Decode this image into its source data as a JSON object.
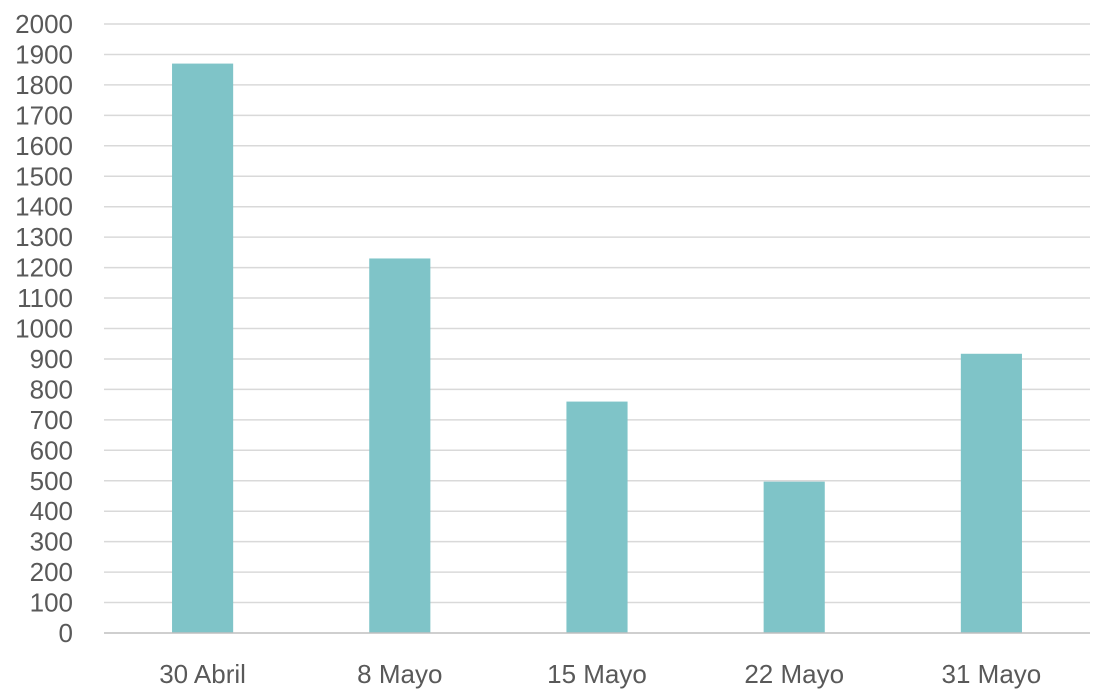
{
  "chart_data": {
    "type": "bar",
    "title": "",
    "xlabel": "",
    "ylabel": "",
    "categories": [
      "30 Abril",
      "8 Mayo",
      "15 Mayo",
      "22 Mayo",
      "31 Mayo"
    ],
    "values": [
      1870,
      1230,
      760,
      497,
      917
    ],
    "ylim": [
      0,
      2000
    ],
    "y_ticks": [
      "0",
      "100",
      "200",
      "300",
      "400",
      "500",
      "600",
      "700",
      "800",
      "900",
      "1000",
      "1100",
      "1200",
      "1300",
      "1400",
      "1500",
      "1600",
      "1700",
      "1800",
      "1900",
      "2000"
    ],
    "grid": true,
    "legend": "none",
    "colors": {
      "bar": "#7fc4c8",
      "grid": "#d9d9d9",
      "axis": "#bfbfbf",
      "text": "#595959"
    }
  }
}
